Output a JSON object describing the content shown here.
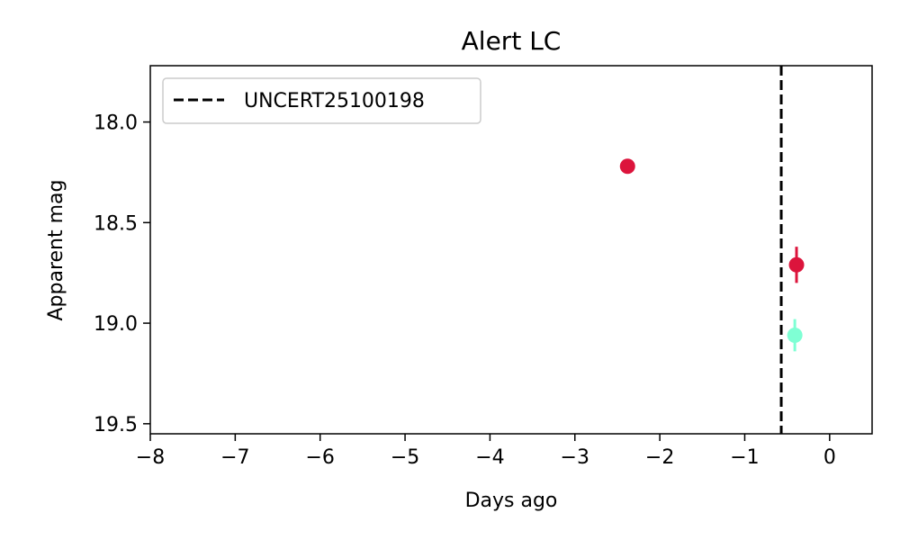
{
  "chart_data": {
    "type": "scatter",
    "title": "Alert LC",
    "xlabel": "Days ago",
    "ylabel": "Apparent mag",
    "xlim": [
      -8,
      0.5
    ],
    "ylim": [
      19.55,
      17.72
    ],
    "y_inverted": true,
    "xticks": [
      -8,
      -7,
      -6,
      -5,
      -4,
      -3,
      -2,
      -1,
      0
    ],
    "xtick_labels": [
      "−8",
      "−7",
      "−6",
      "−5",
      "−4",
      "−3",
      "−2",
      "−1",
      "0"
    ],
    "yticks": [
      18.0,
      18.5,
      19.0,
      19.5
    ],
    "ytick_labels": [
      "18.0",
      "18.5",
      "19.0",
      "19.5"
    ],
    "grid": false,
    "legend": {
      "placement": "top-left",
      "entries": [
        {
          "label": "UNCERT25100198",
          "style": "dashed-line",
          "color": "#000000"
        }
      ]
    },
    "vline": {
      "x": -0.57,
      "style": "dashed",
      "color": "#000000"
    },
    "points": [
      {
        "x": -2.38,
        "y": 18.22,
        "yerr": 0.0,
        "color": "#dc143c"
      },
      {
        "x": -0.39,
        "y": 18.71,
        "yerr": 0.09,
        "color": "#dc143c"
      },
      {
        "x": -0.41,
        "y": 19.06,
        "yerr": 0.08,
        "color": "#7fffd4"
      }
    ]
  }
}
